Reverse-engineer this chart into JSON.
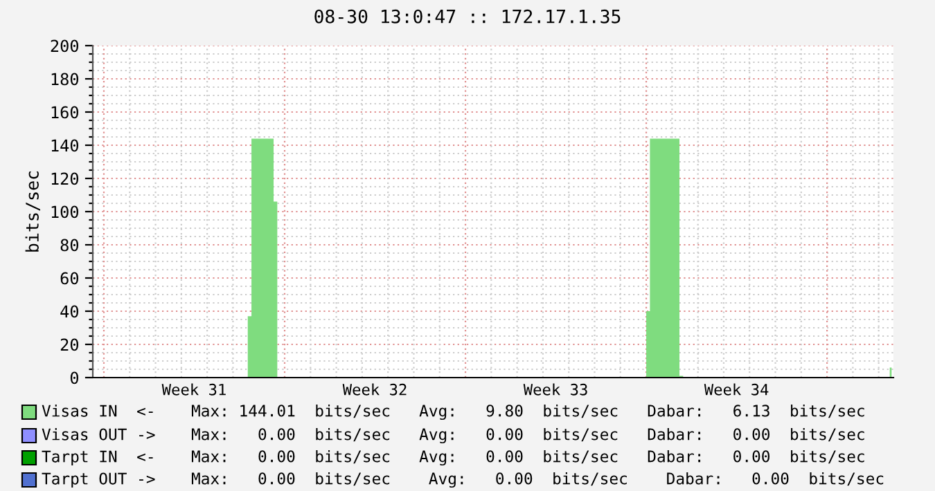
{
  "chart_data": {
    "type": "area",
    "title": "08-30 13:0:47 :: 172.17.1.35",
    "ylabel": "bits/sec",
    "ylim": [
      0,
      200
    ],
    "categories": [
      null,
      null,
      null,
      null,
      null,
      null,
      null,
      null,
      null,
      null,
      null,
      null,
      null,
      null,
      null,
      null,
      null,
      null,
      null,
      null,
      null,
      null,
      null,
      null,
      null,
      null,
      null,
      "Week 31",
      null,
      null,
      null,
      null,
      null,
      null,
      null,
      null,
      null,
      null,
      null,
      null,
      null,
      null,
      null,
      null,
      null,
      null,
      null,
      null,
      null,
      null,
      null,
      null,
      null,
      null,
      null,
      null,
      null,
      null,
      null,
      null,
      null,
      null,
      null,
      null,
      null,
      null,
      null,
      null,
      null,
      null,
      null,
      null,
      null,
      null,
      null,
      null,
      "Week 32",
      null,
      null,
      null,
      null,
      null,
      null,
      null,
      null,
      null,
      null,
      null,
      null,
      null,
      null,
      null,
      null,
      null,
      null,
      null,
      null,
      null,
      null,
      null,
      null,
      null,
      null,
      null,
      null,
      null,
      null,
      null,
      null,
      null,
      null,
      null,
      null,
      null,
      null,
      null,
      null,
      null,
      null,
      null,
      null,
      null,
      null,
      null,
      null,
      "Week 33",
      null,
      null,
      null,
      null,
      null,
      null,
      null,
      null,
      null,
      null,
      null,
      null,
      null,
      null,
      null,
      null,
      null,
      null,
      null,
      null,
      null,
      null,
      null,
      null,
      null,
      null,
      null,
      null,
      null,
      null,
      null,
      null,
      null,
      null,
      null,
      null,
      null,
      null,
      null,
      null,
      null,
      null,
      null,
      null,
      null,
      null,
      null,
      null,
      "Week 34",
      null,
      null,
      null,
      null,
      null,
      null,
      null,
      null,
      null,
      null,
      null,
      null,
      null,
      null,
      null,
      null,
      null,
      null,
      null,
      null,
      null,
      null,
      null,
      null,
      null,
      null,
      null,
      null,
      null,
      null,
      null,
      null,
      null,
      null,
      null,
      null,
      null,
      null,
      null,
      null,
      null,
      null
    ],
    "yticks": [
      0,
      {
        "value": 5,
        "label": null
      },
      {
        "value": 10,
        "label": null
      },
      {
        "value": 15,
        "label": null
      },
      20,
      {
        "value": 25,
        "label": null
      },
      {
        "value": 30,
        "label": null
      },
      {
        "value": 35,
        "label": null
      },
      40,
      {
        "value": 45,
        "label": null
      },
      {
        "value": 50,
        "label": null
      },
      {
        "value": 55,
        "label": null
      },
      60,
      {
        "value": 65,
        "label": null
      },
      {
        "value": 70,
        "label": null
      },
      {
        "value": 75,
        "label": null
      },
      80,
      {
        "value": 85,
        "label": null
      },
      {
        "value": 90,
        "label": null
      },
      {
        "value": 95,
        "label": null
      },
      100,
      {
        "value": 105,
        "label": null
      },
      {
        "value": 110,
        "label": null
      },
      {
        "value": 115,
        "label": null
      },
      120,
      {
        "value": 125,
        "label": null
      },
      {
        "value": 130,
        "label": null
      },
      {
        "value": 135,
        "label": null
      },
      140,
      {
        "value": 145,
        "label": null
      },
      {
        "value": 150,
        "label": null
      },
      {
        "value": 155,
        "label": null
      },
      160,
      {
        "value": 165,
        "label": null
      },
      {
        "value": 170,
        "label": null
      },
      {
        "value": 175,
        "label": null
      },
      180,
      {
        "value": 185,
        "label": null
      },
      {
        "value": 190,
        "label": null
      },
      {
        "value": 195,
        "label": null
      },
      200
    ],
    "grid": true,
    "legend": "bottom",
    "series": [
      {
        "name": "Visas IN  <-",
        "color": "#7fdc7f",
        "values": [
          0,
          0,
          0,
          0,
          0,
          0,
          0,
          0,
          0,
          0,
          0,
          0,
          0,
          0,
          0,
          0,
          0,
          0,
          0,
          0,
          0,
          0,
          0,
          0,
          0,
          0,
          0,
          0,
          0,
          0,
          0,
          0,
          0,
          0,
          0,
          0,
          0,
          0,
          0,
          0,
          0,
          0,
          37,
          144,
          144,
          144,
          144,
          144,
          144,
          106,
          0,
          0,
          0,
          0,
          0,
          0,
          0,
          0,
          0,
          0,
          0,
          0,
          0,
          0,
          0,
          0,
          0,
          0,
          0,
          0,
          0,
          0,
          0,
          0,
          0,
          0,
          0,
          0,
          0,
          0,
          0,
          0,
          0,
          0,
          0,
          0,
          0,
          0,
          0,
          0,
          0,
          0,
          0,
          0,
          0,
          0,
          0,
          0,
          0,
          0,
          0,
          0,
          0,
          0,
          0,
          0,
          0,
          0,
          0,
          0,
          0,
          0,
          0,
          0,
          0,
          0,
          0,
          0,
          0,
          0,
          0,
          0,
          0,
          0,
          0,
          0,
          0,
          0,
          0,
          0,
          0,
          0,
          0,
          0,
          0,
          0,
          0,
          0,
          0,
          0,
          0,
          0,
          0,
          0,
          0,
          0,
          0,
          0,
          0,
          0,
          40,
          144,
          144,
          144,
          144,
          144,
          144,
          144,
          144,
          1,
          0,
          0,
          0,
          0,
          0,
          0,
          0,
          0,
          0,
          0,
          0,
          0,
          0,
          0,
          0,
          0,
          0,
          0,
          0,
          0,
          0,
          0,
          0,
          0,
          0,
          0,
          0,
          0,
          0,
          0,
          0,
          0,
          0,
          0,
          0,
          0,
          0,
          0,
          0,
          0,
          0,
          0,
          0,
          0,
          0,
          0,
          0,
          0,
          0,
          0,
          0,
          0,
          0,
          0,
          0,
          0,
          6
        ]
      },
      {
        "name": "Visas OUT ->",
        "color": "#8f8fff",
        "values": [
          null,
          null,
          null,
          null,
          null,
          null,
          null,
          null,
          null,
          null,
          null,
          null,
          null,
          null,
          null,
          null,
          null,
          null,
          null,
          null,
          null,
          null,
          null,
          null,
          null,
          null,
          null,
          null,
          null,
          null,
          null,
          null,
          null,
          null,
          null,
          null,
          null,
          null,
          null,
          null,
          null,
          null,
          null,
          null,
          null,
          null,
          null,
          null,
          null,
          null,
          null,
          null,
          null,
          null,
          null,
          null,
          null,
          null,
          null,
          null,
          null,
          null,
          null,
          null,
          null,
          null,
          null,
          null,
          null,
          null,
          null,
          null,
          null,
          null,
          null,
          null,
          null,
          null,
          null,
          null,
          null,
          null,
          null,
          null,
          null,
          null,
          null,
          null,
          null,
          null,
          null,
          null,
          null,
          null,
          null,
          null,
          null,
          null,
          null,
          null,
          null,
          null,
          null,
          null,
          null,
          null,
          null,
          null,
          null,
          null,
          null,
          null,
          null,
          null,
          null,
          null,
          null,
          null,
          null,
          null,
          null,
          null,
          null,
          null,
          null,
          null,
          null,
          null,
          null,
          null,
          null,
          null,
          null,
          null,
          null,
          null,
          null,
          null,
          null,
          null,
          null,
          null,
          null,
          null,
          null,
          null,
          null,
          null,
          null,
          null,
          null,
          null,
          null,
          null,
          null,
          null,
          null,
          null,
          null,
          null,
          null,
          null,
          null,
          null,
          null,
          null,
          null,
          null,
          null,
          null,
          null,
          null,
          null,
          null,
          null,
          null,
          null,
          null,
          null,
          null,
          null,
          null,
          null,
          null,
          null,
          null,
          null,
          null,
          null,
          null,
          null,
          null,
          null,
          null,
          null,
          null,
          null,
          null,
          null,
          null,
          null,
          null,
          null,
          null,
          null,
          null,
          null,
          null,
          null,
          null,
          null,
          null,
          null,
          null,
          null,
          null,
          null
        ]
      },
      {
        "name": "Tarpt IN  <-",
        "color": "#00a000",
        "values": [
          null,
          null,
          null,
          null,
          null,
          null,
          null,
          null,
          null,
          null,
          null,
          null,
          null,
          null,
          null,
          null,
          null,
          null,
          null,
          null,
          null,
          null,
          null,
          null,
          null,
          null,
          null,
          null,
          null,
          null,
          null,
          null,
          null,
          null,
          null,
          null,
          null,
          null,
          null,
          null,
          null,
          null,
          null,
          null,
          null,
          null,
          null,
          null,
          null,
          null,
          null,
          null,
          null,
          null,
          null,
          null,
          null,
          null,
          null,
          null,
          null,
          null,
          null,
          null,
          null,
          null,
          null,
          null,
          null,
          null,
          null,
          null,
          null,
          null,
          null,
          null,
          null,
          null,
          null,
          null,
          null,
          null,
          null,
          null,
          null,
          null,
          null,
          null,
          null,
          null,
          null,
          null,
          null,
          null,
          null,
          null,
          null,
          null,
          null,
          null,
          null,
          null,
          null,
          null,
          null,
          null,
          null,
          null,
          null,
          null,
          null,
          null,
          null,
          null,
          null,
          null,
          null,
          null,
          null,
          null,
          null,
          null,
          null,
          null,
          null,
          null,
          null,
          null,
          null,
          null,
          null,
          null,
          null,
          null,
          null,
          null,
          null,
          null,
          null,
          null,
          null,
          null,
          null,
          null,
          null,
          null,
          null,
          null,
          null,
          null,
          null,
          null,
          null,
          null,
          null,
          null,
          null,
          null,
          null,
          null,
          null,
          null,
          null,
          null,
          null,
          null,
          null,
          null,
          null,
          null,
          null,
          null,
          null,
          null,
          null,
          null,
          null,
          null,
          null,
          null,
          null,
          null,
          null,
          null,
          null,
          null,
          null,
          null,
          null,
          null,
          null,
          null,
          null,
          null,
          null,
          null,
          null,
          null,
          null,
          null,
          null,
          null,
          null,
          null,
          null,
          null,
          null,
          null,
          null,
          null,
          null,
          null,
          null,
          null,
          null,
          null,
          null
        ]
      },
      {
        "name": "Tarpt OUT ->",
        "color": "#5070d0",
        "values": [
          null,
          null,
          null,
          null,
          null,
          null,
          null,
          null,
          null,
          null,
          null,
          null,
          null,
          null,
          null,
          null,
          null,
          null,
          null,
          null,
          null,
          null,
          null,
          null,
          null,
          null,
          null,
          null,
          null,
          null,
          null,
          null,
          null,
          null,
          null,
          null,
          null,
          null,
          null,
          null,
          null,
          null,
          null,
          null,
          null,
          null,
          null,
          null,
          null,
          null,
          null,
          null,
          null,
          null,
          null,
          null,
          null,
          null,
          null,
          null,
          null,
          null,
          null,
          null,
          null,
          null,
          null,
          null,
          null,
          null,
          null,
          null,
          null,
          null,
          null,
          null,
          null,
          null,
          null,
          null,
          null,
          null,
          null,
          null,
          null,
          null,
          null,
          null,
          null,
          null,
          null,
          null,
          null,
          null,
          null,
          null,
          null,
          null,
          null,
          null,
          null,
          null,
          null,
          null,
          null,
          null,
          null,
          null,
          null,
          null,
          null,
          null,
          null,
          null,
          null,
          null,
          null,
          null,
          null,
          null,
          null,
          null,
          null,
          null,
          null,
          null,
          null,
          null,
          null,
          null,
          null,
          null,
          null,
          null,
          null,
          null,
          null,
          null,
          null,
          null,
          null,
          null,
          null,
          null,
          null,
          null,
          null,
          null,
          null,
          null,
          null,
          null,
          null,
          null,
          null,
          null,
          null,
          null,
          null,
          null,
          null,
          null,
          null,
          null,
          null,
          null,
          null,
          null,
          null,
          null,
          null,
          null,
          null,
          null,
          null,
          null,
          null,
          null,
          null,
          null,
          null,
          null,
          null,
          null,
          null,
          null,
          null,
          null,
          null,
          null,
          null,
          null,
          null,
          null,
          null,
          null,
          null,
          null,
          null,
          null,
          null,
          null,
          null,
          null,
          null,
          null,
          null,
          null,
          null,
          null,
          null,
          null,
          null,
          null,
          null,
          null,
          null
        ]
      }
    ],
    "annotations": [
      "Max: 144.01  bits/sec   Avg:   9.80  bits/sec   Dabar:   6.13  bits/sec",
      "Max:   0.00  bits/sec   Avg:   0.00  bits/sec   Dabar:   0.00  bits/sec",
      "Max:   0.00  bits/sec   Avg:   0.00  bits/sec   Dabar:   0.00  bits/sec",
      "Max:   0.00  bits/sec    Avg:   0.00  bits/sec    Dabar:   0.00  bits/sec"
    ]
  }
}
